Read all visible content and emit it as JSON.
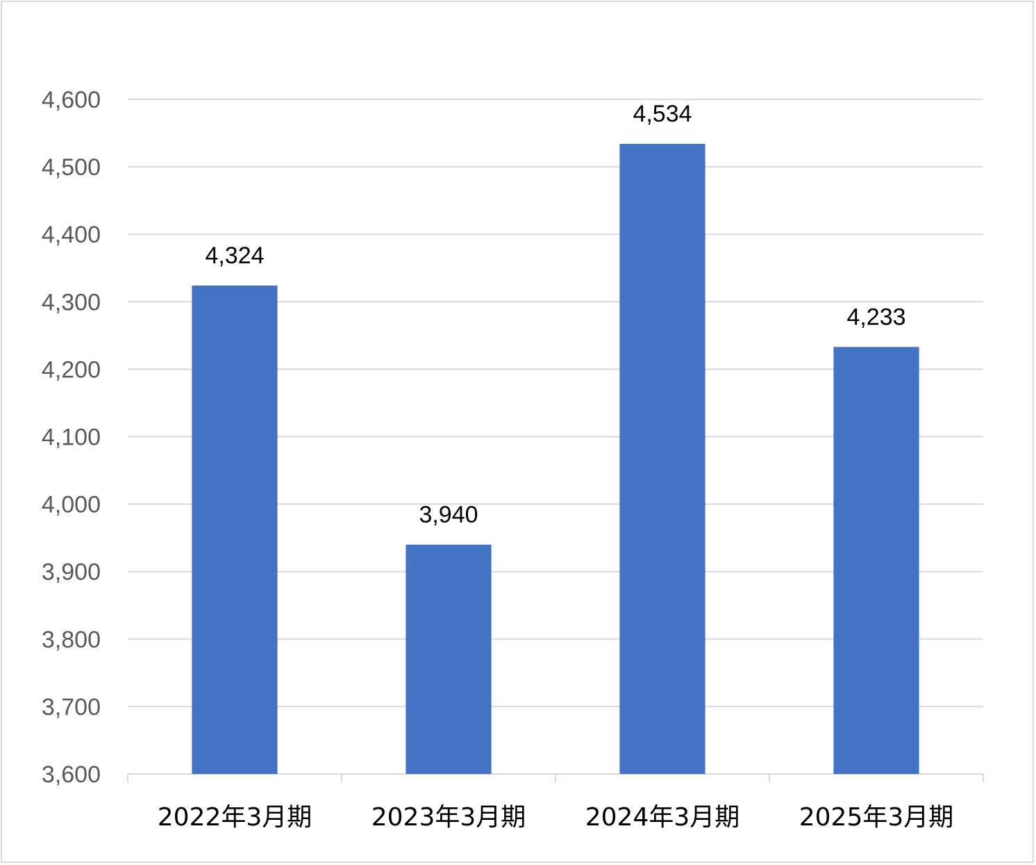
{
  "chart_data": {
    "type": "bar",
    "categories": [
      "2022年3月期",
      "2023年3月期",
      "2024年3月期",
      "2025年3月期"
    ],
    "values": [
      4324,
      3940,
      4534,
      4233
    ],
    "data_labels": [
      "4,324",
      "3,940",
      "4,534",
      "4,233"
    ],
    "title": "",
    "xlabel": "",
    "ylabel": "",
    "ylim": [
      3600,
      4600
    ],
    "ytick_step": 100,
    "ytick_labels": [
      "3,600",
      "3,700",
      "3,800",
      "3,900",
      "4,000",
      "4,100",
      "4,200",
      "4,300",
      "4,400",
      "4,500",
      "4,600"
    ],
    "grid": true,
    "legend": "none",
    "colors": {
      "bar": "#4472c4",
      "grid": "#d9d9d9",
      "axis": "#d9d9d9",
      "tick_text": "#595959",
      "label_text": "#000000"
    }
  }
}
